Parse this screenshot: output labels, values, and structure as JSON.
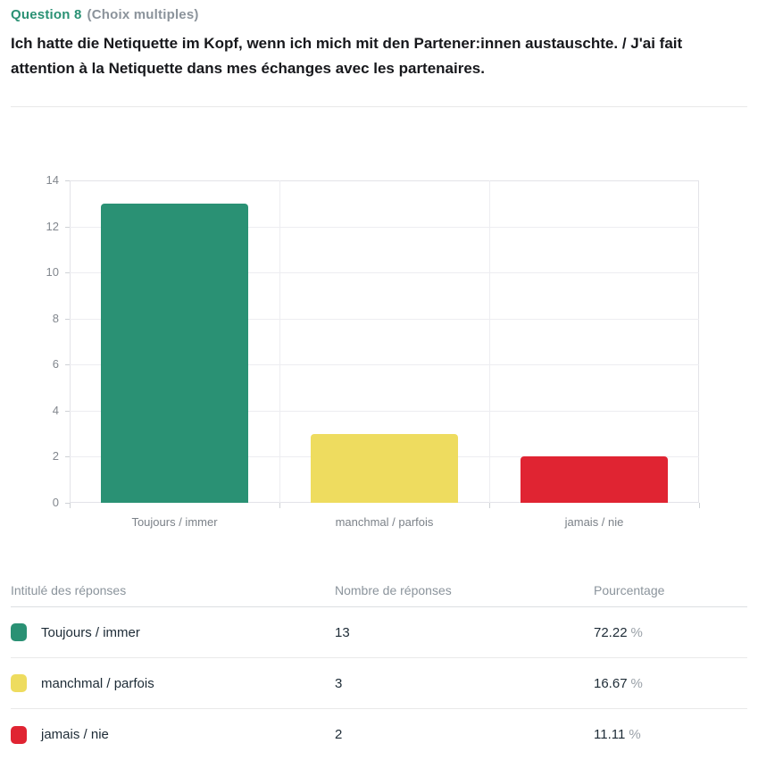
{
  "header": {
    "question_label": "Question 8",
    "question_type": "(Choix multiples)"
  },
  "question_text": "Ich hatte die Netiquette im Kopf, wenn ich mich mit den Partener:innen austauschte. / J'ai fait attention à la Netiquette dans mes échanges avec les partenaires.",
  "colors": {
    "accent_teal": "#2a9174",
    "bar_teal": "#2a9174",
    "bar_yellow": "#eedc5f",
    "bar_red": "#e02432"
  },
  "chart_data": {
    "type": "bar",
    "categories": [
      "Toujours / immer",
      "manchmal / parfois",
      "jamais / nie"
    ],
    "values": [
      13,
      3,
      2
    ],
    "bar_colors": [
      "#2a9174",
      "#eedc5f",
      "#e02432"
    ],
    "title": "",
    "xlabel": "",
    "ylabel": "",
    "ylim": [
      0,
      14
    ],
    "yticks": [
      0,
      2,
      4,
      6,
      8,
      10,
      12,
      14
    ],
    "grid": true,
    "legend": false
  },
  "table": {
    "headers": [
      "Intitulé des réponses",
      "Nombre de réponses",
      "Pourcentage"
    ],
    "rows": [
      {
        "label": "Toujours / immer",
        "count": "13",
        "percent": "72.22",
        "percent_sign": "%",
        "color": "#2a9174"
      },
      {
        "label": "manchmal / parfois",
        "count": "3",
        "percent": "16.67",
        "percent_sign": "%",
        "color": "#eedc5f"
      },
      {
        "label": "jamais / nie",
        "count": "2",
        "percent": "11.11",
        "percent_sign": "%",
        "color": "#e02432"
      }
    ]
  }
}
